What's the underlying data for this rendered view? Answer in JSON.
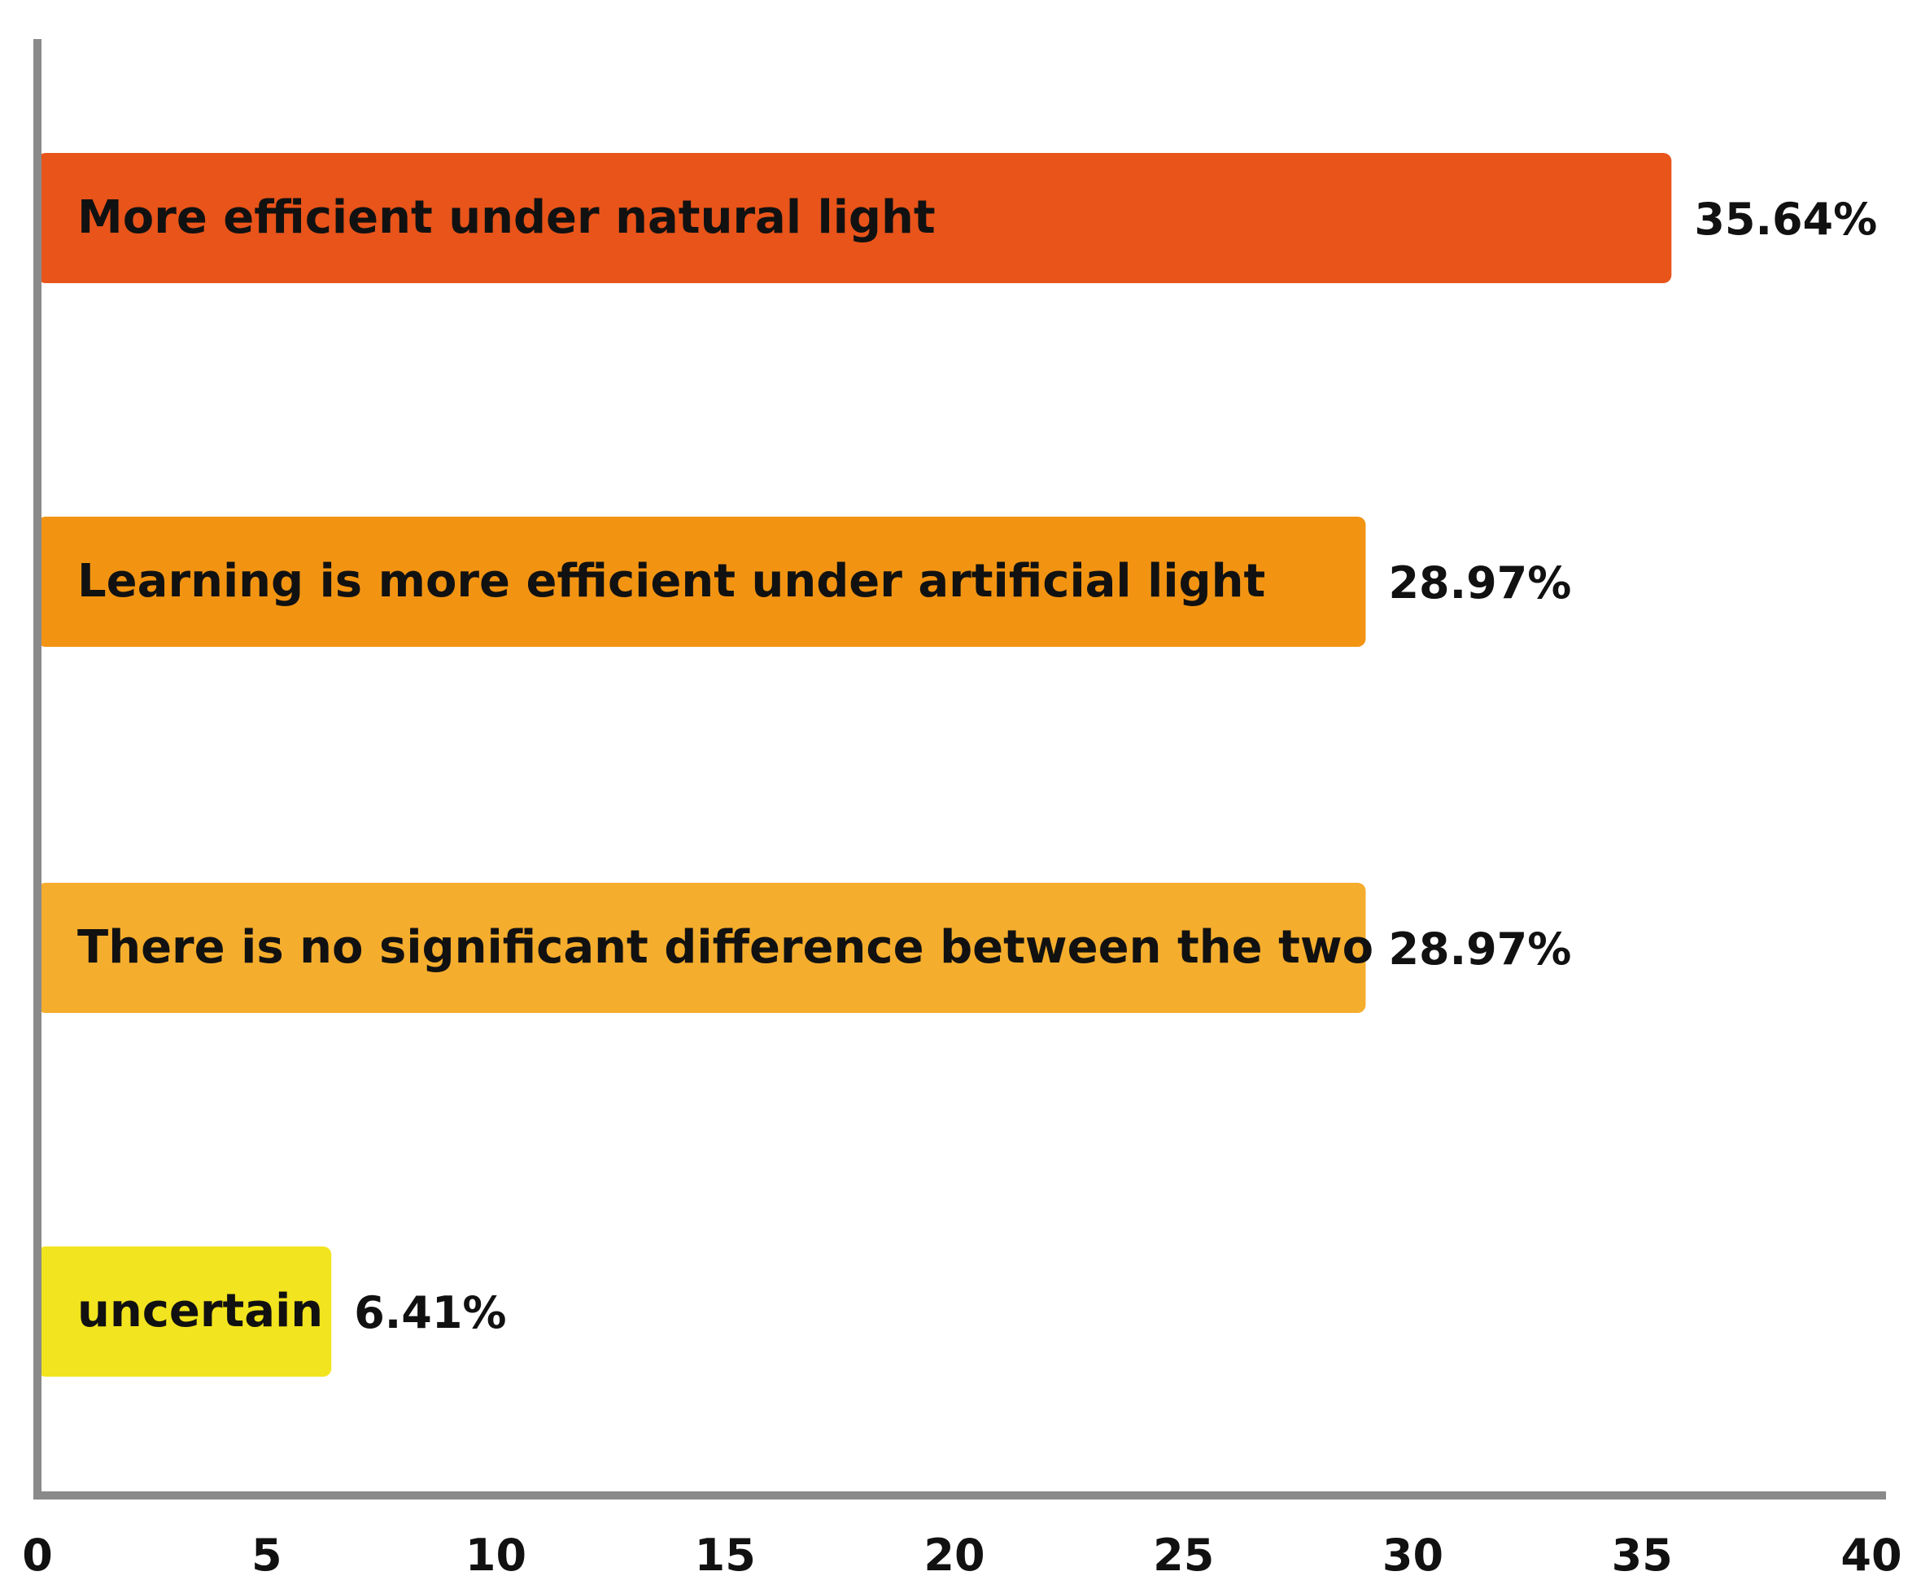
{
  "chart_data": {
    "type": "bar",
    "orientation": "horizontal",
    "title": "",
    "xlabel": "",
    "ylabel": "",
    "xlim": [
      0,
      40
    ],
    "xticks": [
      0,
      5,
      10,
      15,
      20,
      25,
      30,
      35,
      40
    ],
    "grid": false,
    "legend": "none",
    "categories": [
      "More efficient under natural light",
      "Learning is more efficient under artificial light",
      "There is no significant difference between the two",
      "uncertain"
    ],
    "values": [
      35.64,
      28.97,
      28.97,
      6.41
    ],
    "value_labels": [
      "35.64%",
      "28.97%",
      "28.97%",
      "6.41%"
    ],
    "colors": [
      "#e8541a",
      "#f29412",
      "#f5ad2d",
      "#f2e41e"
    ],
    "axis_color": "#8a8a8a"
  }
}
